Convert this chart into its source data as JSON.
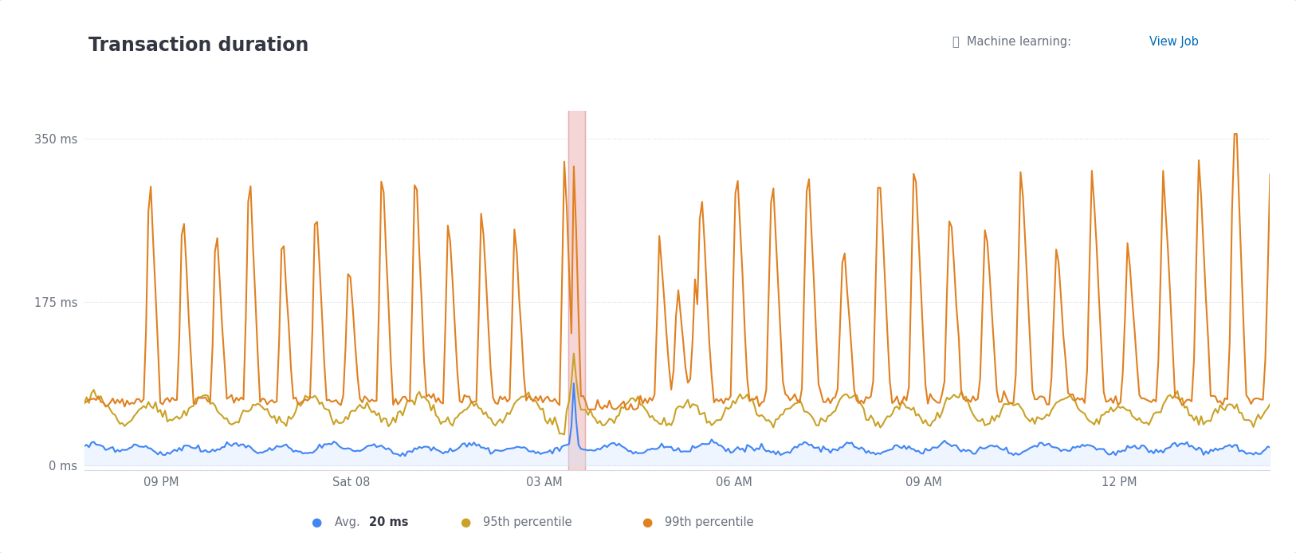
{
  "title": "Transaction duration",
  "ml_label": "Machine learning: ",
  "ml_link": "View Job",
  "x_labels": [
    "09 PM",
    "Sat 08",
    "03 AM",
    "06 AM",
    "09 AM",
    "12 PM"
  ],
  "y_labels": [
    "0 ms",
    "175 ms",
    "350 ms"
  ],
  "y_ticks": [
    0,
    175,
    350
  ],
  "ylim": [
    -5,
    380
  ],
  "avg_color": "#4285f4",
  "p95_color": "#c9a227",
  "p99_color": "#e08020",
  "bg_color": "#ffffff",
  "plot_bg": "#ffffff",
  "grid_color": "#d3dae6",
  "anomaly_color": "#f5d5d5",
  "anomaly_line_color": "#e0b0b0",
  "avg_fill_color": "#d0e4ff",
  "text_color": "#343741",
  "axis_label_color": "#69707d",
  "ml_text_color": "#69707d",
  "ml_link_color": "#006bb4",
  "legend_text_color": "#69707d",
  "legend_bold_color": "#343741",
  "border_color": "#d3dae6"
}
